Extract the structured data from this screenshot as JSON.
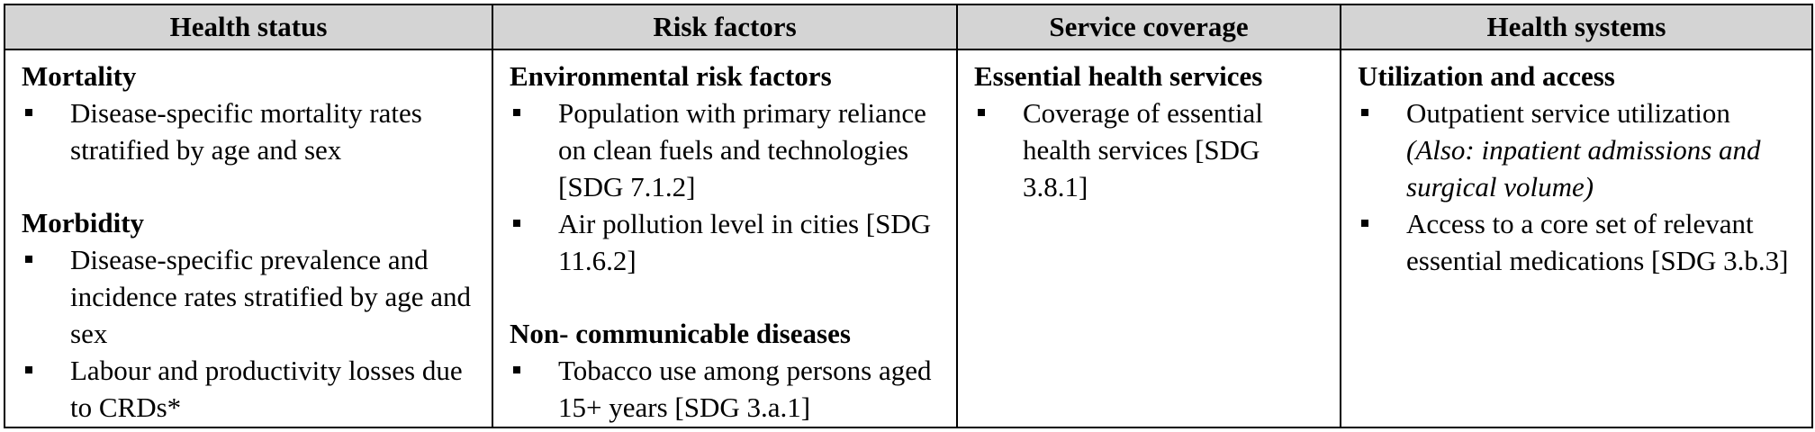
{
  "columns": [
    {
      "header": "Health status",
      "sections": [
        {
          "heading": "Mortality",
          "items": [
            {
              "text": "Disease-specific mortality rates stratified by age and sex"
            }
          ]
        },
        {
          "heading": "Morbidity",
          "items": [
            {
              "text": "Disease-specific prevalence and incidence rates stratified by age and sex"
            },
            {
              "text": "Labour and productivity losses due to CRDs*"
            }
          ]
        }
      ]
    },
    {
      "header": "Risk factors",
      "sections": [
        {
          "heading": "Environmental risk factors",
          "items": [
            {
              "text": "Population with primary reliance on clean fuels and technologies [SDG 7.1.2]"
            },
            {
              "text": "Air pollution level in cities [SDG 11.6.2]"
            }
          ]
        },
        {
          "heading": "Non- communicable diseases",
          "items": [
            {
              "text": "Tobacco use among persons aged 15+ years [SDG 3.a.1]"
            }
          ]
        }
      ]
    },
    {
      "header": "Service coverage",
      "sections": [
        {
          "heading": "Essential health services",
          "items": [
            {
              "text": "Coverage of essential health services [SDG 3.8.1]"
            }
          ]
        }
      ]
    },
    {
      "header": "Health systems",
      "sections": [
        {
          "heading": "Utilization and access",
          "items": [
            {
              "text": "Outpatient service utilization",
              "note": "(Also: inpatient admissions and surgical volume)"
            },
            {
              "text": "Access to a core set of relevant essential medications [SDG 3.b.3]"
            }
          ]
        }
      ]
    }
  ]
}
